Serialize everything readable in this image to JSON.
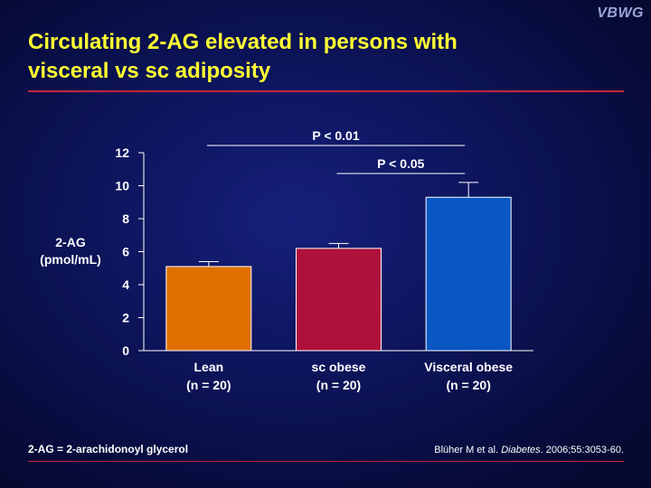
{
  "header": {
    "logo": "VBWG",
    "title_line1": "Circulating 2-AG elevated in persons with",
    "title_line2": "visceral vs sc adiposity"
  },
  "chart_data": {
    "type": "bar",
    "categories": [
      {
        "name": "Lean",
        "n": "(n = 20)"
      },
      {
        "name": "sc obese",
        "n": "(n = 20)"
      },
      {
        "name": "Visceral obese",
        "n": "(n = 20)"
      }
    ],
    "values": [
      5.1,
      6.2,
      9.3
    ],
    "error_bars": [
      0.3,
      0.3,
      0.9
    ],
    "colors": [
      "#e07000",
      "#b0103c",
      "#0a56c2"
    ],
    "ylabel_line1": "2-AG",
    "ylabel_line2": "(pmol/mL)",
    "ylim": [
      0,
      12
    ],
    "yticks": [
      "0",
      "2",
      "4",
      "6",
      "8",
      "10",
      "12"
    ],
    "grid": false,
    "significance": [
      {
        "label": "P < 0.01",
        "from": 0,
        "to": 2
      },
      {
        "label": "P < 0.05",
        "from": 1,
        "to": 2
      }
    ]
  },
  "footer": {
    "footnote": "2-AG = 2-arachidonoyl glycerol",
    "citation_prefix": "Blüher M et al. ",
    "citation_journal": "Diabetes",
    "citation_suffix": ". 2006;55:3053-60."
  }
}
